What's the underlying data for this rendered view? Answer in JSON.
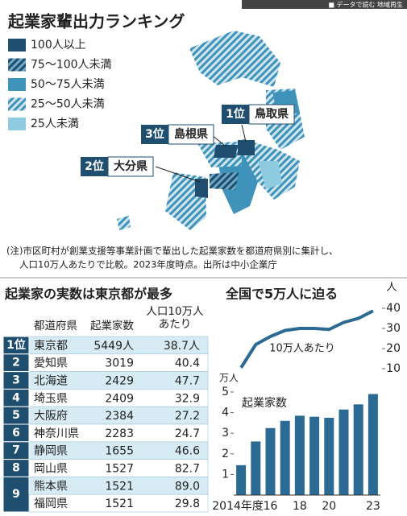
{
  "banner": "■ データで読む 地域再生",
  "title": "起業家輩出力ランキング",
  "legend": [
    "100人以上",
    "75～100人未満",
    "50～75人未満",
    "25～50人未満",
    "25人未満"
  ],
  "callouts": [
    {
      "rank": "1位",
      "name": "鳥取県"
    },
    {
      "rank": "3位",
      "name": "島根県"
    },
    {
      "rank": "2位",
      "name": "大分県"
    }
  ],
  "note": [
    "(注)市区町村が創業支援等事業計画で輩出した起業家数を都道府県別に集計し、",
    "人口10万人あたりで比較。2023年度時点。出所は中小企業庁"
  ],
  "table": {
    "title": "起業家の実数は東京都が最多",
    "header": [
      "都道府県",
      "起業家数",
      [
        "人口10万人",
        "あたり"
      ]
    ],
    "rows": [
      [
        "1位",
        "東京都",
        "5449人",
        "38.7人"
      ],
      [
        "2",
        "愛知県",
        "3019",
        "40.4"
      ],
      [
        "3",
        "北海道",
        "2429",
        "47.7"
      ],
      [
        "4",
        "埼玉県",
        "2409",
        "32.9"
      ],
      [
        "5",
        "大阪府",
        "2384",
        "27.2"
      ],
      [
        "6",
        "神奈川県",
        "2283",
        "24.7"
      ],
      [
        "7",
        "静岡県",
        "1655",
        "46.6"
      ],
      [
        "8",
        "岡山県",
        "1527",
        "82.7"
      ],
      [
        "9",
        "熊本県",
        "1521",
        "89.0"
      ],
      [
        null,
        "福岡県",
        "1521",
        "29.8"
      ]
    ]
  },
  "right_title": "全国で5万人に迫る",
  "chart_data": [
    {
      "type": "line",
      "y_unit": "人",
      "annotation": "10万人あたり",
      "values": [
        10.5,
        22,
        26,
        29,
        30,
        30,
        29.5,
        33,
        35,
        38.7
      ],
      "ylim": [
        7,
        41
      ],
      "yticks": [
        10,
        20,
        30,
        40
      ],
      "color": "#2b6a92"
    },
    {
      "type": "bar",
      "title": "起業家数",
      "y_unit": "万人",
      "categories": [
        "2014年度",
        null,
        "16",
        null,
        "18",
        null,
        "20",
        null,
        null,
        "23"
      ],
      "values": [
        1.45,
        2.6,
        3.25,
        3.6,
        3.85,
        3.8,
        3.75,
        4.15,
        4.4,
        4.9
      ],
      "ylim": [
        0,
        5.1
      ],
      "yticks": [
        1,
        2,
        3,
        4,
        5
      ],
      "color": "#2b6a92"
    }
  ]
}
